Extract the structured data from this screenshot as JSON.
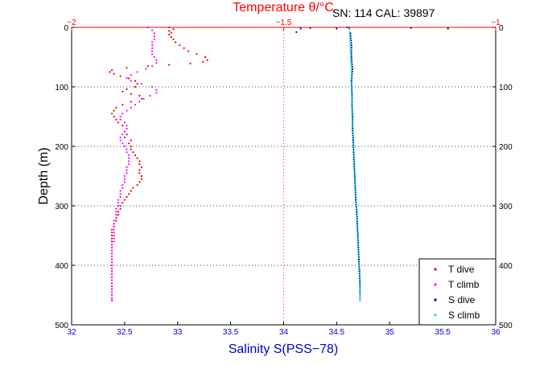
{
  "chart_data": {
    "type": "scatter",
    "title": "Temperature θ/°C",
    "annotation": "SN: 114  CAL: 39897",
    "xlabel": "Salinity S(PSS−78)",
    "ylabel": "Depth (m)",
    "x_salinity": {
      "lim": [
        32,
        36
      ],
      "ticks": [
        "32",
        "32.5",
        "33",
        "33.5",
        "34",
        "34.5",
        "35",
        "35.5",
        "36"
      ],
      "color": "#0000cc"
    },
    "x_temperature": {
      "lim": [
        -2,
        -1
      ],
      "ticks": [
        "−2",
        "−1.5",
        "−1"
      ],
      "color": "#ff0000"
    },
    "y": {
      "lim": [
        0,
        500
      ],
      "ticks": [
        "0",
        "100",
        "200",
        "300",
        "400",
        "500"
      ],
      "reversed": true
    },
    "grid": "dotted horizontal at 100 m intervals; dotted vertical at salinity 34 (temperature −1.5)",
    "legend_position": "bottom-right",
    "series": [
      {
        "name": "T dive",
        "axis": "temperature",
        "color": "#dd0000",
        "points": [
          [
            -1.77,
            0
          ],
          [
            -1.76,
            3
          ],
          [
            -1.77,
            6
          ],
          [
            -1.765,
            9
          ],
          [
            -1.77,
            12
          ],
          [
            -1.765,
            16
          ],
          [
            -1.76,
            20
          ],
          [
            -1.755,
            25
          ],
          [
            -1.745,
            30
          ],
          [
            -1.735,
            35
          ],
          [
            -1.725,
            40
          ],
          [
            -1.705,
            45
          ],
          [
            -1.685,
            50
          ],
          [
            -1.68,
            55
          ],
          [
            -1.69,
            58
          ],
          [
            -1.72,
            61
          ],
          [
            -1.77,
            63
          ],
          [
            -1.82,
            65
          ],
          [
            -1.87,
            68
          ],
          [
            -1.905,
            72
          ],
          [
            -1.91,
            75
          ],
          [
            -1.9,
            78
          ],
          [
            -1.885,
            82
          ],
          [
            -1.865,
            86
          ],
          [
            -1.85,
            90
          ],
          [
            -1.845,
            95
          ],
          [
            -1.85,
            100
          ],
          [
            -1.87,
            104
          ],
          [
            -1.88,
            108
          ],
          [
            -1.86,
            112
          ],
          [
            -1.84,
            115
          ],
          [
            -1.835,
            120
          ],
          [
            -1.86,
            125
          ],
          [
            -1.88,
            130
          ],
          [
            -1.895,
            135
          ],
          [
            -1.9,
            140
          ],
          [
            -1.905,
            145
          ],
          [
            -1.9,
            150
          ],
          [
            -1.895,
            155
          ],
          [
            -1.89,
            160
          ],
          [
            -1.88,
            165
          ],
          [
            -1.87,
            170
          ],
          [
            -1.875,
            175
          ],
          [
            -1.87,
            180
          ],
          [
            -1.875,
            185
          ],
          [
            -1.86,
            190
          ],
          [
            -1.865,
            195
          ],
          [
            -1.86,
            200
          ],
          [
            -1.86,
            205
          ],
          [
            -1.855,
            210
          ],
          [
            -1.85,
            215
          ],
          [
            -1.845,
            220
          ],
          [
            -1.84,
            225
          ],
          [
            -1.84,
            230
          ],
          [
            -1.835,
            235
          ],
          [
            -1.84,
            240
          ],
          [
            -1.84,
            245
          ],
          [
            -1.835,
            250
          ],
          [
            -1.835,
            255
          ],
          [
            -1.84,
            260
          ],
          [
            -1.845,
            265
          ],
          [
            -1.855,
            270
          ],
          [
            -1.86,
            275
          ],
          [
            -1.865,
            280
          ],
          [
            -1.87,
            285
          ],
          [
            -1.875,
            290
          ],
          [
            -1.88,
            295
          ],
          [
            -1.885,
            300
          ],
          [
            -1.885,
            305
          ],
          [
            -1.89,
            310
          ],
          [
            -1.89,
            315
          ],
          [
            -1.895,
            320
          ],
          [
            -1.895,
            325
          ],
          [
            -1.9,
            330
          ],
          [
            -1.9,
            335
          ],
          [
            -1.905,
            340
          ],
          [
            -1.905,
            345
          ],
          [
            -1.905,
            350
          ],
          [
            -1.905,
            355
          ],
          [
            -1.905,
            360
          ],
          [
            -1.905,
            365
          ],
          [
            -1.905,
            370
          ],
          [
            -1.905,
            375
          ],
          [
            -1.905,
            380
          ],
          [
            -1.905,
            385
          ],
          [
            -1.905,
            390
          ],
          [
            -1.905,
            395
          ],
          [
            -1.905,
            400
          ],
          [
            -1.905,
            405
          ],
          [
            -1.905,
            410
          ],
          [
            -1.905,
            415
          ],
          [
            -1.905,
            420
          ],
          [
            -1.905,
            425
          ],
          [
            -1.905,
            430
          ],
          [
            -1.905,
            435
          ],
          [
            -1.905,
            440
          ],
          [
            -1.905,
            445
          ],
          [
            -1.905,
            450
          ],
          [
            -1.905,
            455
          ],
          [
            -1.905,
            459
          ]
        ]
      },
      {
        "name": "T climb",
        "axis": "temperature",
        "color": "#ff00ff",
        "points": [
          [
            -1.82,
            0
          ],
          [
            -1.81,
            5
          ],
          [
            -1.805,
            10
          ],
          [
            -1.805,
            15
          ],
          [
            -1.805,
            20
          ],
          [
            -1.81,
            25
          ],
          [
            -1.81,
            30
          ],
          [
            -1.81,
            35
          ],
          [
            -1.81,
            40
          ],
          [
            -1.81,
            45
          ],
          [
            -1.805,
            50
          ],
          [
            -1.8,
            55
          ],
          [
            -1.8,
            60
          ],
          [
            -1.81,
            65
          ],
          [
            -1.825,
            70
          ],
          [
            -1.845,
            75
          ],
          [
            -1.86,
            80
          ],
          [
            -1.87,
            85
          ],
          [
            -1.86,
            90
          ],
          [
            -1.835,
            95
          ],
          [
            -1.81,
            100
          ],
          [
            -1.8,
            105
          ],
          [
            -1.8,
            110
          ],
          [
            -1.815,
            115
          ],
          [
            -1.83,
            120
          ],
          [
            -1.84,
            125
          ],
          [
            -1.85,
            130
          ],
          [
            -1.86,
            135
          ],
          [
            -1.87,
            140
          ],
          [
            -1.88,
            145
          ],
          [
            -1.885,
            150
          ],
          [
            -1.885,
            155
          ],
          [
            -1.875,
            160
          ],
          [
            -1.87,
            165
          ],
          [
            -1.87,
            170
          ],
          [
            -1.875,
            175
          ],
          [
            -1.88,
            180
          ],
          [
            -1.885,
            185
          ],
          [
            -1.885,
            190
          ],
          [
            -1.88,
            195
          ],
          [
            -1.875,
            200
          ],
          [
            -1.87,
            205
          ],
          [
            -1.87,
            210
          ],
          [
            -1.865,
            215
          ],
          [
            -1.865,
            220
          ],
          [
            -1.865,
            225
          ],
          [
            -1.865,
            230
          ],
          [
            -1.87,
            235
          ],
          [
            -1.87,
            240
          ],
          [
            -1.87,
            245
          ],
          [
            -1.875,
            250
          ],
          [
            -1.875,
            255
          ],
          [
            -1.875,
            260
          ],
          [
            -1.88,
            265
          ],
          [
            -1.88,
            270
          ],
          [
            -1.885,
            275
          ],
          [
            -1.885,
            280
          ],
          [
            -1.885,
            285
          ],
          [
            -1.89,
            290
          ],
          [
            -1.89,
            295
          ],
          [
            -1.89,
            300
          ],
          [
            -1.895,
            305
          ],
          [
            -1.895,
            310
          ],
          [
            -1.895,
            315
          ],
          [
            -1.895,
            320
          ],
          [
            -1.9,
            325
          ],
          [
            -1.9,
            330
          ],
          [
            -1.9,
            335
          ],
          [
            -1.9,
            340
          ],
          [
            -1.9,
            345
          ],
          [
            -1.9,
            350
          ],
          [
            -1.9,
            355
          ],
          [
            -1.9,
            360
          ],
          [
            -1.905,
            365
          ],
          [
            -1.905,
            370
          ],
          [
            -1.905,
            375
          ],
          [
            -1.905,
            380
          ],
          [
            -1.905,
            385
          ],
          [
            -1.905,
            390
          ],
          [
            -1.905,
            395
          ],
          [
            -1.905,
            400
          ],
          [
            -1.905,
            405
          ],
          [
            -1.905,
            410
          ],
          [
            -1.905,
            415
          ],
          [
            -1.905,
            420
          ],
          [
            -1.905,
            425
          ],
          [
            -1.905,
            430
          ],
          [
            -1.905,
            435
          ],
          [
            -1.905,
            440
          ],
          [
            -1.905,
            445
          ],
          [
            -1.905,
            450
          ],
          [
            -1.905,
            455
          ],
          [
            -1.905,
            459
          ]
        ]
      },
      {
        "name": "S dive",
        "axis": "salinity",
        "color": "#000088",
        "points": [
          [
            34.6,
            0
          ],
          [
            34.62,
            1
          ],
          [
            34.16,
            2
          ],
          [
            34.25,
            1
          ],
          [
            34.5,
            2
          ],
          [
            35.2,
            1
          ],
          [
            35.55,
            2
          ],
          [
            34.12,
            8
          ],
          [
            34.63,
            10
          ],
          [
            34.64,
            30
          ],
          [
            34.64,
            50
          ],
          [
            34.65,
            70
          ],
          [
            34.64,
            90
          ],
          [
            34.645,
            110
          ],
          [
            34.645,
            130
          ],
          [
            34.65,
            150
          ],
          [
            34.65,
            170
          ],
          [
            34.655,
            190
          ],
          [
            34.66,
            210
          ],
          [
            34.665,
            230
          ],
          [
            34.67,
            250
          ],
          [
            34.675,
            270
          ],
          [
            34.68,
            290
          ],
          [
            34.69,
            310
          ],
          [
            34.695,
            330
          ],
          [
            34.7,
            350
          ],
          [
            34.705,
            370
          ],
          [
            34.71,
            390
          ],
          [
            34.715,
            410
          ],
          [
            34.72,
            430
          ],
          [
            34.72,
            445
          ],
          [
            34.72,
            459
          ]
        ]
      },
      {
        "name": "S climb",
        "axis": "salinity",
        "color": "#00e5e5",
        "points": [
          [
            34.62,
            0
          ],
          [
            34.625,
            20
          ],
          [
            34.63,
            40
          ],
          [
            34.635,
            60
          ],
          [
            34.64,
            80
          ],
          [
            34.64,
            100
          ],
          [
            34.645,
            120
          ],
          [
            34.645,
            140
          ],
          [
            34.65,
            160
          ],
          [
            34.655,
            180
          ],
          [
            34.66,
            200
          ],
          [
            34.665,
            220
          ],
          [
            34.67,
            240
          ],
          [
            34.675,
            260
          ],
          [
            34.68,
            280
          ],
          [
            34.685,
            300
          ],
          [
            34.69,
            320
          ],
          [
            34.695,
            340
          ],
          [
            34.7,
            360
          ],
          [
            34.705,
            380
          ],
          [
            34.71,
            400
          ],
          [
            34.715,
            420
          ],
          [
            34.72,
            440
          ],
          [
            34.72,
            459
          ]
        ]
      }
    ]
  }
}
